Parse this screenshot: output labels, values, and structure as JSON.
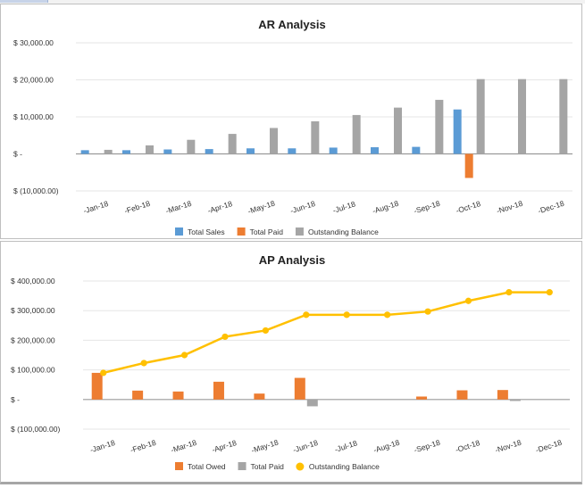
{
  "chart_data": [
    {
      "type": "bar",
      "title": "AR Analysis",
      "categories": [
        "-Jan-18",
        "-Feb-18",
        "-Mar-18",
        "-Apr-18",
        "-May-18",
        "-Jun-18",
        "-Jul-18",
        "-Aug-18",
        "-Sep-18",
        "-Oct-18",
        "-Nov-18",
        "-Dec-18"
      ],
      "series": [
        {
          "name": "Total Sales",
          "type": "bar",
          "color": "#5b9bd5",
          "values": [
            1000,
            1000,
            1200,
            1300,
            1500,
            1500,
            1700,
            1800,
            1900,
            12000,
            null,
            null
          ]
        },
        {
          "name": "Total Paid",
          "type": "bar",
          "color": "#ed7d31",
          "values": [
            null,
            null,
            null,
            null,
            null,
            null,
            null,
            null,
            null,
            -6500,
            null,
            null
          ]
        },
        {
          "name": "Outstanding Balance",
          "type": "bar",
          "color": "#a5a5a5",
          "values": [
            1100,
            2300,
            3800,
            5400,
            7000,
            8800,
            10500,
            12500,
            14600,
            20200,
            20200,
            20200
          ]
        }
      ],
      "ylim": [
        -10000,
        30000
      ],
      "yticks": [
        -10000,
        0,
        10000,
        20000,
        30000
      ],
      "ytick_labels": [
        "$ (10,000.00)",
        "$ -",
        "$ 10,000.00",
        "$ 20,000.00",
        "$ 30,000.00"
      ],
      "grid": true,
      "legend": "bottom"
    },
    {
      "type": "bar",
      "title": "AP Analysis",
      "categories": [
        "-Jan-18",
        "-Feb-18",
        "-Mar-18",
        "-Apr-18",
        "-May-18",
        "-Jun-18",
        "-Jul-18",
        "-Aug-18",
        "-Sep-18",
        "-Oct-18",
        "-Nov-18",
        "-Dec-18"
      ],
      "series": [
        {
          "name": "Total Owed",
          "type": "bar",
          "color": "#ed7d31",
          "values": [
            90000,
            30000,
            27000,
            60000,
            20000,
            73000,
            null,
            null,
            10000,
            31000,
            32000,
            null
          ]
        },
        {
          "name": "Total Paid",
          "type": "bar",
          "color": "#a5a5a5",
          "values": [
            null,
            null,
            null,
            null,
            null,
            -23000,
            null,
            null,
            null,
            null,
            -5000,
            null
          ]
        },
        {
          "name": "Outstanding Balance",
          "type": "line",
          "color": "#ffc000",
          "values": [
            90000,
            123000,
            150000,
            212000,
            233000,
            286000,
            286000,
            286000,
            297000,
            333000,
            362000,
            362000
          ]
        }
      ],
      "ylim": [
        -100000,
        400000
      ],
      "yticks": [
        -100000,
        0,
        100000,
        200000,
        300000,
        400000
      ],
      "ytick_labels": [
        "$ (100,000.00)",
        "$ -",
        "$ 100,000.00",
        "$ 200,000.00",
        "$ 300,000.00",
        "$ 400,000.00"
      ],
      "grid": true,
      "legend": "bottom"
    }
  ]
}
